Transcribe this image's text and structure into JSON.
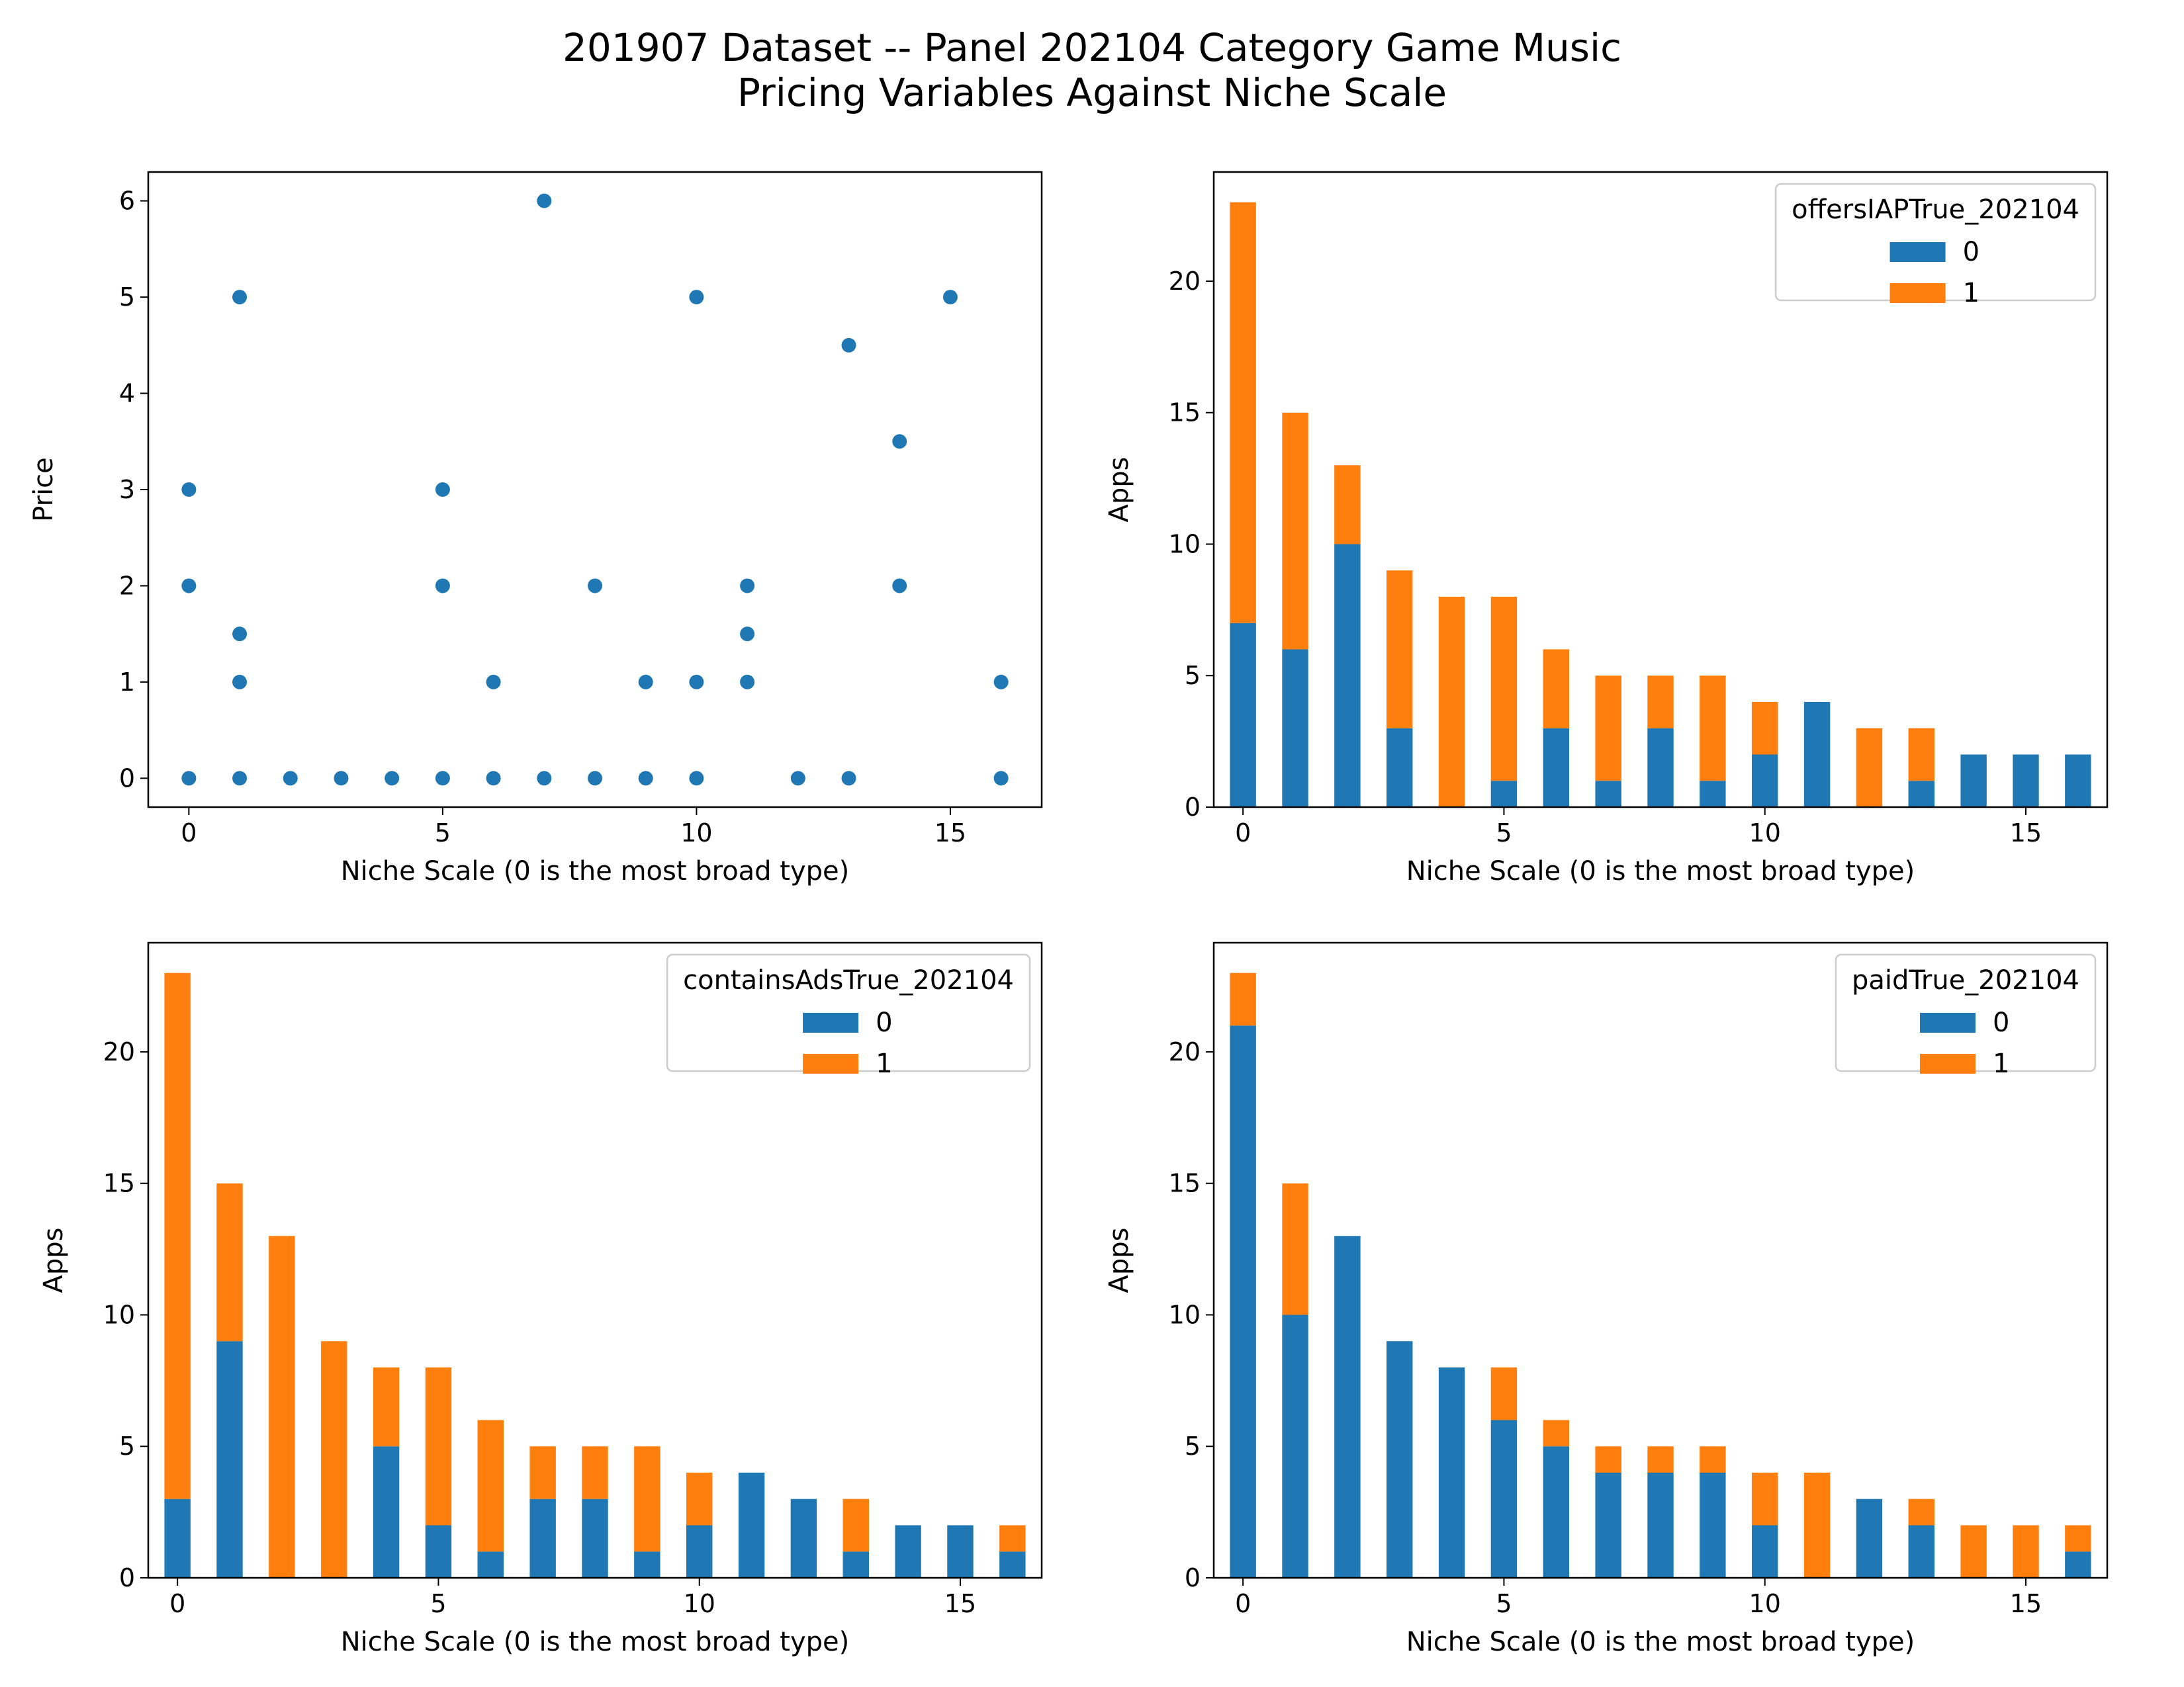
{
  "figure": {
    "title_line1": "201907 Dataset -- Panel 202104 Category Game Music",
    "title_line2": "Pricing Variables Against Niche Scale"
  },
  "colors": {
    "series0": "#1f77b4",
    "series1": "#ff7f0e",
    "legend_border": "#cccccc"
  },
  "chart_data": [
    {
      "type": "scatter",
      "xlabel": "Niche Scale (0 is the most broad type)",
      "ylabel": "Price",
      "xlim": [
        -0.8,
        16.8
      ],
      "ylim": [
        -0.3,
        6.3
      ],
      "xticks": [
        0,
        5,
        10,
        15
      ],
      "yticks": [
        0,
        1,
        2,
        3,
        4,
        5,
        6
      ],
      "points": [
        [
          0,
          0
        ],
        [
          0,
          2
        ],
        [
          0,
          3
        ],
        [
          1,
          0
        ],
        [
          1,
          1
        ],
        [
          1,
          1.5
        ],
        [
          1,
          5
        ],
        [
          2,
          0
        ],
        [
          3,
          0
        ],
        [
          4,
          0
        ],
        [
          5,
          0
        ],
        [
          5,
          2
        ],
        [
          5,
          3
        ],
        [
          6,
          0
        ],
        [
          6,
          1
        ],
        [
          7,
          0
        ],
        [
          7,
          6
        ],
        [
          8,
          0
        ],
        [
          8,
          2
        ],
        [
          9,
          0
        ],
        [
          9,
          1
        ],
        [
          10,
          0
        ],
        [
          10,
          1
        ],
        [
          10,
          5
        ],
        [
          11,
          1
        ],
        [
          11,
          1.5
        ],
        [
          11,
          2
        ],
        [
          12,
          0
        ],
        [
          13,
          0
        ],
        [
          13,
          4.5
        ],
        [
          14,
          2
        ],
        [
          14,
          3.5
        ],
        [
          15,
          5
        ],
        [
          16,
          0
        ],
        [
          16,
          1
        ]
      ]
    },
    {
      "type": "bar",
      "stacked": true,
      "xlabel": "Niche Scale (0 is the most broad type)",
      "ylabel": "Apps",
      "legend_title": "offersIAPTrue_202104",
      "legend_position": "upper right",
      "categories": [
        0,
        1,
        2,
        3,
        4,
        5,
        6,
        7,
        8,
        9,
        10,
        11,
        12,
        13,
        14,
        15,
        16
      ],
      "xticks": [
        0,
        5,
        10,
        15
      ],
      "yticks": [
        0,
        5,
        10,
        15,
        20
      ],
      "ylim": [
        0,
        24.15
      ],
      "series": [
        {
          "name": "0",
          "values": [
            7,
            6,
            10,
            3,
            0,
            1,
            3,
            1,
            3,
            1,
            2,
            4,
            0,
            1,
            2,
            2,
            2
          ]
        },
        {
          "name": "1",
          "values": [
            16,
            9,
            3,
            6,
            8,
            7,
            3,
            4,
            2,
            4,
            2,
            0,
            3,
            2,
            0,
            0,
            0
          ]
        }
      ]
    },
    {
      "type": "bar",
      "stacked": true,
      "xlabel": "Niche Scale (0 is the most broad type)",
      "ylabel": "Apps",
      "legend_title": "containsAdsTrue_202104",
      "legend_position": "upper right",
      "categories": [
        0,
        1,
        2,
        3,
        4,
        5,
        6,
        7,
        8,
        9,
        10,
        11,
        12,
        13,
        14,
        15,
        16
      ],
      "xticks": [
        0,
        5,
        10,
        15
      ],
      "yticks": [
        0,
        5,
        10,
        15,
        20
      ],
      "ylim": [
        0,
        24.15
      ],
      "series": [
        {
          "name": "0",
          "values": [
            3,
            9,
            0,
            0,
            5,
            2,
            1,
            3,
            3,
            1,
            2,
            4,
            3,
            1,
            2,
            2,
            1
          ]
        },
        {
          "name": "1",
          "values": [
            20,
            6,
            13,
            9,
            3,
            6,
            5,
            2,
            2,
            4,
            2,
            0,
            0,
            2,
            0,
            0,
            1
          ]
        }
      ]
    },
    {
      "type": "bar",
      "stacked": true,
      "xlabel": "Niche Scale (0 is the most broad type)",
      "ylabel": "Apps",
      "legend_title": "paidTrue_202104",
      "legend_position": "upper right",
      "categories": [
        0,
        1,
        2,
        3,
        4,
        5,
        6,
        7,
        8,
        9,
        10,
        11,
        12,
        13,
        14,
        15,
        16
      ],
      "xticks": [
        0,
        5,
        10,
        15
      ],
      "yticks": [
        0,
        5,
        10,
        15,
        20
      ],
      "ylim": [
        0,
        24.15
      ],
      "series": [
        {
          "name": "0",
          "values": [
            21,
            10,
            13,
            9,
            8,
            6,
            5,
            4,
            4,
            4,
            2,
            0,
            3,
            2,
            0,
            0,
            1
          ]
        },
        {
          "name": "1",
          "values": [
            2,
            5,
            0,
            0,
            0,
            2,
            1,
            1,
            1,
            1,
            2,
            4,
            0,
            1,
            2,
            2,
            1
          ]
        }
      ]
    }
  ]
}
